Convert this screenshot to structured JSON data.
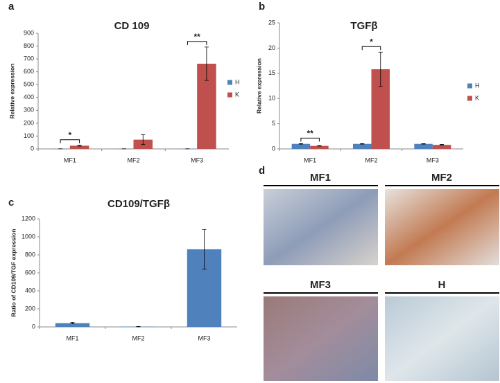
{
  "chart_data": [
    {
      "type": "bar",
      "panel": "a",
      "title": "CD 109",
      "ylabel": "Relative expression",
      "categories": [
        "MF1",
        "MF2",
        "MF3"
      ],
      "series": [
        {
          "name": "H",
          "color": "#4f81bd",
          "values": [
            1,
            1,
            1
          ],
          "errors": [
            0.3,
            0.3,
            0.3
          ]
        },
        {
          "name": "K",
          "color": "#c0504d",
          "values": [
            25,
            72,
            663
          ],
          "errors": [
            3,
            38,
            130
          ]
        }
      ],
      "significance": [
        "*",
        null,
        "**"
      ],
      "ylim": [
        0,
        900
      ],
      "yticks": [
        0,
        100,
        200,
        300,
        400,
        500,
        600,
        700,
        800,
        900
      ],
      "grid": false,
      "legend": "right"
    },
    {
      "type": "bar",
      "panel": "b",
      "title": "TGFβ",
      "ylabel": "Relative expression",
      "categories": [
        "MF1",
        "MF2",
        "MF3"
      ],
      "series": [
        {
          "name": "H",
          "color": "#4f81bd",
          "values": [
            1.0,
            1.0,
            1.0
          ],
          "errors": [
            0.05,
            0.05,
            0.05
          ]
        },
        {
          "name": "K",
          "color": "#c0504d",
          "values": [
            0.6,
            15.8,
            0.8
          ],
          "errors": [
            0.05,
            3.4,
            0.1
          ]
        }
      ],
      "significance": [
        "**",
        "*",
        null
      ],
      "ylim": [
        0,
        25
      ],
      "yticks": [
        0,
        5,
        10,
        15,
        20,
        25
      ],
      "grid": false,
      "legend": "right"
    },
    {
      "type": "bar",
      "panel": "c",
      "title": "CD109/TGFβ",
      "ylabel": "Ratio of CD109/TGF expression",
      "categories": [
        "MF1",
        "MF2",
        "MF3"
      ],
      "values": [
        42,
        3,
        862
      ],
      "errors": [
        8,
        2,
        220
      ],
      "color": "#4f81bd",
      "ylim": [
        0,
        1200
      ],
      "yticks": [
        0,
        200,
        400,
        600,
        800,
        1000,
        1200
      ],
      "grid": false
    }
  ],
  "image_panel": {
    "panel": "d",
    "images": [
      "MF1",
      "MF2",
      "MF3",
      "H"
    ]
  }
}
